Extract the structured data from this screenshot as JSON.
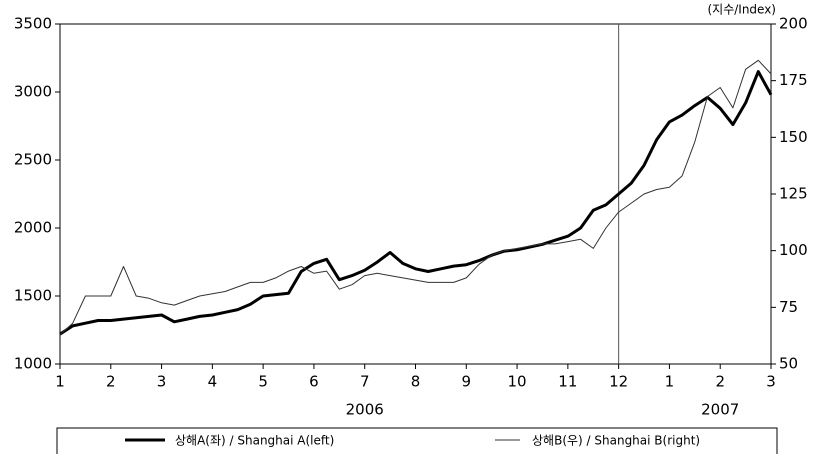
{
  "chart_data": {
    "type": "line",
    "y2_label": "(지수/Index)",
    "x": [
      1,
      1.25,
      1.5,
      1.75,
      2,
      2.25,
      2.5,
      2.75,
      3,
      3.25,
      3.5,
      3.75,
      4,
      4.25,
      4.5,
      4.75,
      5,
      5.25,
      5.5,
      5.75,
      6,
      6.25,
      6.5,
      6.75,
      7,
      7.25,
      7.5,
      7.75,
      8,
      8.25,
      8.5,
      8.75,
      9,
      9.25,
      9.5,
      9.75,
      10,
      10.25,
      10.5,
      10.75,
      11,
      11.25,
      11.5,
      11.75,
      12,
      12.25,
      12.5,
      12.75,
      13,
      13.25,
      13.5,
      13.75,
      14,
      14.25,
      14.5,
      14.75,
      15
    ],
    "series": [
      {
        "name": "상해A(좌) / Shanghai A(left)",
        "color": "#000000",
        "width": 3,
        "axis": "y",
        "values": [
          1220,
          1280,
          1300,
          1320,
          1320,
          1330,
          1340,
          1350,
          1360,
          1310,
          1330,
          1350,
          1360,
          1380,
          1400,
          1440,
          1500,
          1510,
          1520,
          1680,
          1740,
          1770,
          1620,
          1650,
          1690,
          1750,
          1820,
          1740,
          1700,
          1680,
          1700,
          1720,
          1730,
          1760,
          1800,
          1830,
          1840,
          1860,
          1880,
          1910,
          1940,
          2000,
          2130,
          2170,
          2250,
          2330,
          2460,
          2650,
          2780,
          2830,
          2900,
          2960,
          2880,
          2760,
          2920,
          3150,
          2980
        ]
      },
      {
        "name": "상해B(우) / Shanghai B(right)",
        "color": "#333333",
        "width": 1,
        "axis": "y2",
        "values": [
          63,
          68,
          80,
          80,
          80,
          93,
          80,
          79,
          77,
          76,
          78,
          80,
          81,
          82,
          84,
          86,
          86,
          88,
          91,
          93,
          90,
          91,
          83,
          85,
          89,
          90,
          89,
          88,
          87,
          86,
          86,
          86,
          88,
          94,
          98,
          100,
          101,
          102,
          103,
          103,
          104,
          105,
          101,
          110,
          117,
          121,
          125,
          127,
          128,
          133,
          148,
          168,
          172,
          163,
          180,
          184,
          178
        ]
      }
    ],
    "xlim": [
      1,
      15
    ],
    "xticks": [
      1,
      2,
      3,
      4,
      5,
      6,
      7,
      8,
      9,
      10,
      11,
      12,
      {
        "value": 13,
        "label": "1"
      },
      {
        "value": 14,
        "label": "2"
      },
      {
        "value": 15,
        "label": "3"
      }
    ],
    "year_groups": [
      {
        "label": "2006",
        "from": 1,
        "to": 13
      },
      {
        "label": "2007",
        "from": 13,
        "to": 15
      }
    ],
    "reference_x": 12,
    "ylim": [
      1000,
      3500
    ],
    "yticks": [
      1000,
      1500,
      2000,
      2500,
      3000,
      3500
    ],
    "y2lim": [
      50,
      200
    ],
    "y2ticks": [
      50,
      75,
      100,
      125,
      150,
      175,
      200
    ]
  }
}
